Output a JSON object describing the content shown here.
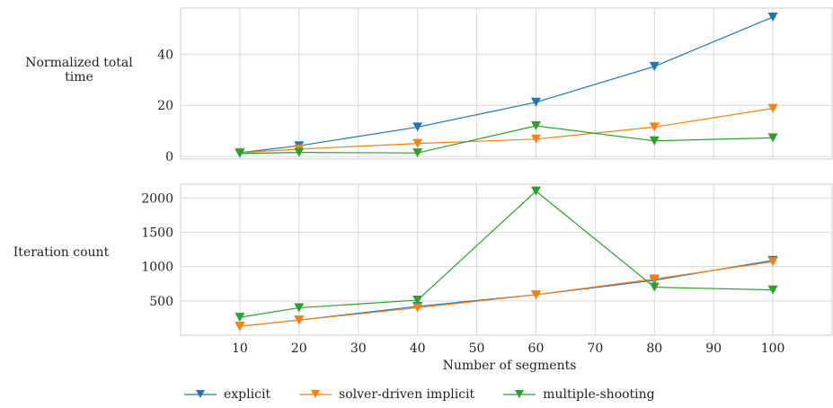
{
  "chart_data": [
    {
      "type": "line",
      "ylabel": "Normalized total time",
      "ylabel_lines": [
        "Normalized total",
        "time"
      ],
      "xlabel": "",
      "ylim": [
        -1,
        58
      ],
      "yticks": [
        0,
        20,
        40
      ],
      "x": [
        10,
        20,
        40,
        60,
        80,
        100
      ],
      "series": [
        {
          "name": "explicit",
          "color": "#1f77b4",
          "values": [
            1.5,
            4.2,
            11.5,
            21.2,
            35.2,
            54.5
          ]
        },
        {
          "name": "solver-driven implicit",
          "color": "#ff7f0e",
          "values": [
            1.5,
            2.9,
            5.1,
            6.8,
            11.5,
            18.8
          ]
        },
        {
          "name": "multiple-shooting",
          "color": "#2ca02c",
          "values": [
            1.2,
            1.6,
            1.4,
            12.0,
            6.1,
            7.3
          ]
        }
      ],
      "grid": true
    },
    {
      "type": "line",
      "ylabel": "Iteration count",
      "xlabel": "Number of segments",
      "ylim": [
        0,
        2200
      ],
      "yticks": [
        500,
        1000,
        1500,
        2000
      ],
      "xlim": [
        0,
        110
      ],
      "xticks": [
        10,
        20,
        30,
        40,
        50,
        60,
        70,
        80,
        90,
        100
      ],
      "x": [
        10,
        20,
        40,
        60,
        80,
        100
      ],
      "series": [
        {
          "name": "explicit",
          "color": "#1f77b4",
          "values": [
            130,
            220,
            420,
            590,
            800,
            1090
          ]
        },
        {
          "name": "solver-driven implicit",
          "color": "#ff7f0e",
          "values": [
            130,
            220,
            400,
            590,
            820,
            1070
          ]
        },
        {
          "name": "multiple-shooting",
          "color": "#2ca02c",
          "values": [
            260,
            400,
            510,
            2100,
            700,
            660
          ]
        }
      ],
      "grid": true
    }
  ],
  "legend": {
    "placement": "bottom",
    "items": [
      {
        "label": "explicit",
        "color": "#1f77b4"
      },
      {
        "label": "solver-driven implicit",
        "color": "#ff7f0e"
      },
      {
        "label": "multiple-shooting",
        "color": "#2ca02c"
      }
    ]
  }
}
